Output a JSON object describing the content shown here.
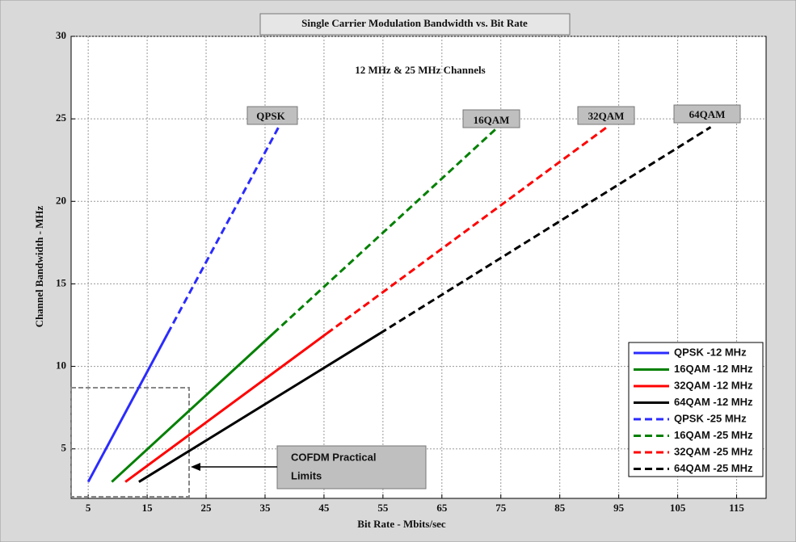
{
  "chart_data": {
    "type": "line",
    "title": "Single Carrier Modulation Bandwidth vs. Bit Rate",
    "xlabel": "Bit Rate - Mbits/sec",
    "ylabel": "Channel Bandwidth - MHz",
    "annotations": [
      "12 MHz & 25 MHz Channels",
      "QPSK",
      "16QAM",
      "32QAM",
      "64QAM",
      "COFDM Practical",
      "Limits"
    ],
    "series": [
      {
        "name": "QPSK -12 MHz",
        "color": "#2b2bff",
        "dash": false,
        "x": [
          5,
          18.5
        ],
        "values": [
          3,
          12
        ]
      },
      {
        "name": "16QAM -12 MHz",
        "color": "#008000",
        "dash": false,
        "x": [
          9,
          36.4
        ],
        "values": [
          3,
          12
        ]
      },
      {
        "name": "32QAM -12 MHz",
        "color": "#ff0000",
        "dash": false,
        "x": [
          11.3,
          45.5
        ],
        "values": [
          3,
          12
        ]
      },
      {
        "name": "64QAM -12 MHz",
        "color": "#000000",
        "dash": false,
        "x": [
          13.6,
          54.5
        ],
        "values": [
          3,
          12
        ]
      },
      {
        "name": "QPSK  -25 MHz",
        "color": "#2b2bff",
        "dash": true,
        "x": [
          18.5,
          37.3
        ],
        "values": [
          12,
          24.5
        ]
      },
      {
        "name": "16QAM -25 MHz",
        "color": "#008000",
        "dash": true,
        "x": [
          36.4,
          74.5
        ],
        "values": [
          12,
          24.5
        ]
      },
      {
        "name": "32QAM -25 MHz",
        "color": "#ff0000",
        "dash": true,
        "x": [
          45.5,
          93
        ],
        "values": [
          12,
          24.5
        ]
      },
      {
        "name": "64QAM -25 MHz",
        "color": "#000000",
        "dash": true,
        "x": [
          54.5,
          110.6
        ],
        "values": [
          12,
          24.5
        ]
      }
    ],
    "xlim": [
      2.1,
      120
    ],
    "ylim": [
      2,
      30
    ],
    "xticks": [
      5,
      15,
      25,
      35,
      45,
      55,
      65,
      75,
      85,
      95,
      105,
      115
    ],
    "yticks": [
      5,
      10,
      15,
      20,
      25,
      30
    ],
    "grid": true,
    "legend": "lower right"
  }
}
